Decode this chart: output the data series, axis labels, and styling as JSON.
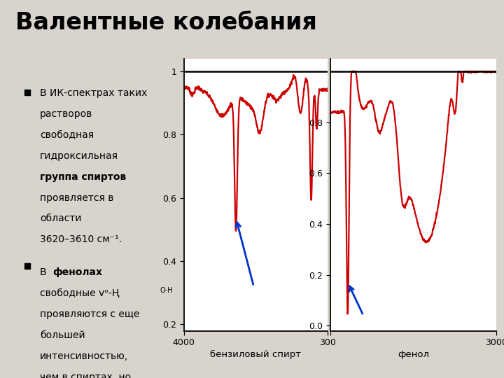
{
  "title": "Валентные колебания",
  "background_color": "#d8d3cc",
  "panel_bg": "#ffffff",
  "left_xlabel": "бензиловый спирт",
  "right_xlabel": "фенол",
  "left_ylim": [
    0.18,
    1.04
  ],
  "right_ylim": [
    -0.02,
    1.05
  ],
  "arrow_color": "#0033cc",
  "red_color": "#cc0000",
  "line_width": 1.6,
  "left_yticks": [
    0.2,
    0.4,
    0.6,
    0.8,
    1.0
  ],
  "left_ytick_labels": [
    "0.2",
    "0.4",
    "0.6",
    "0.8",
    "1"
  ],
  "right_yticks": [
    0.0,
    0.2,
    0.4,
    0.6,
    0.8
  ],
  "right_ytick_labels": [
    "0.0",
    "0.2",
    "0.4",
    "0.6",
    "0.8"
  ]
}
